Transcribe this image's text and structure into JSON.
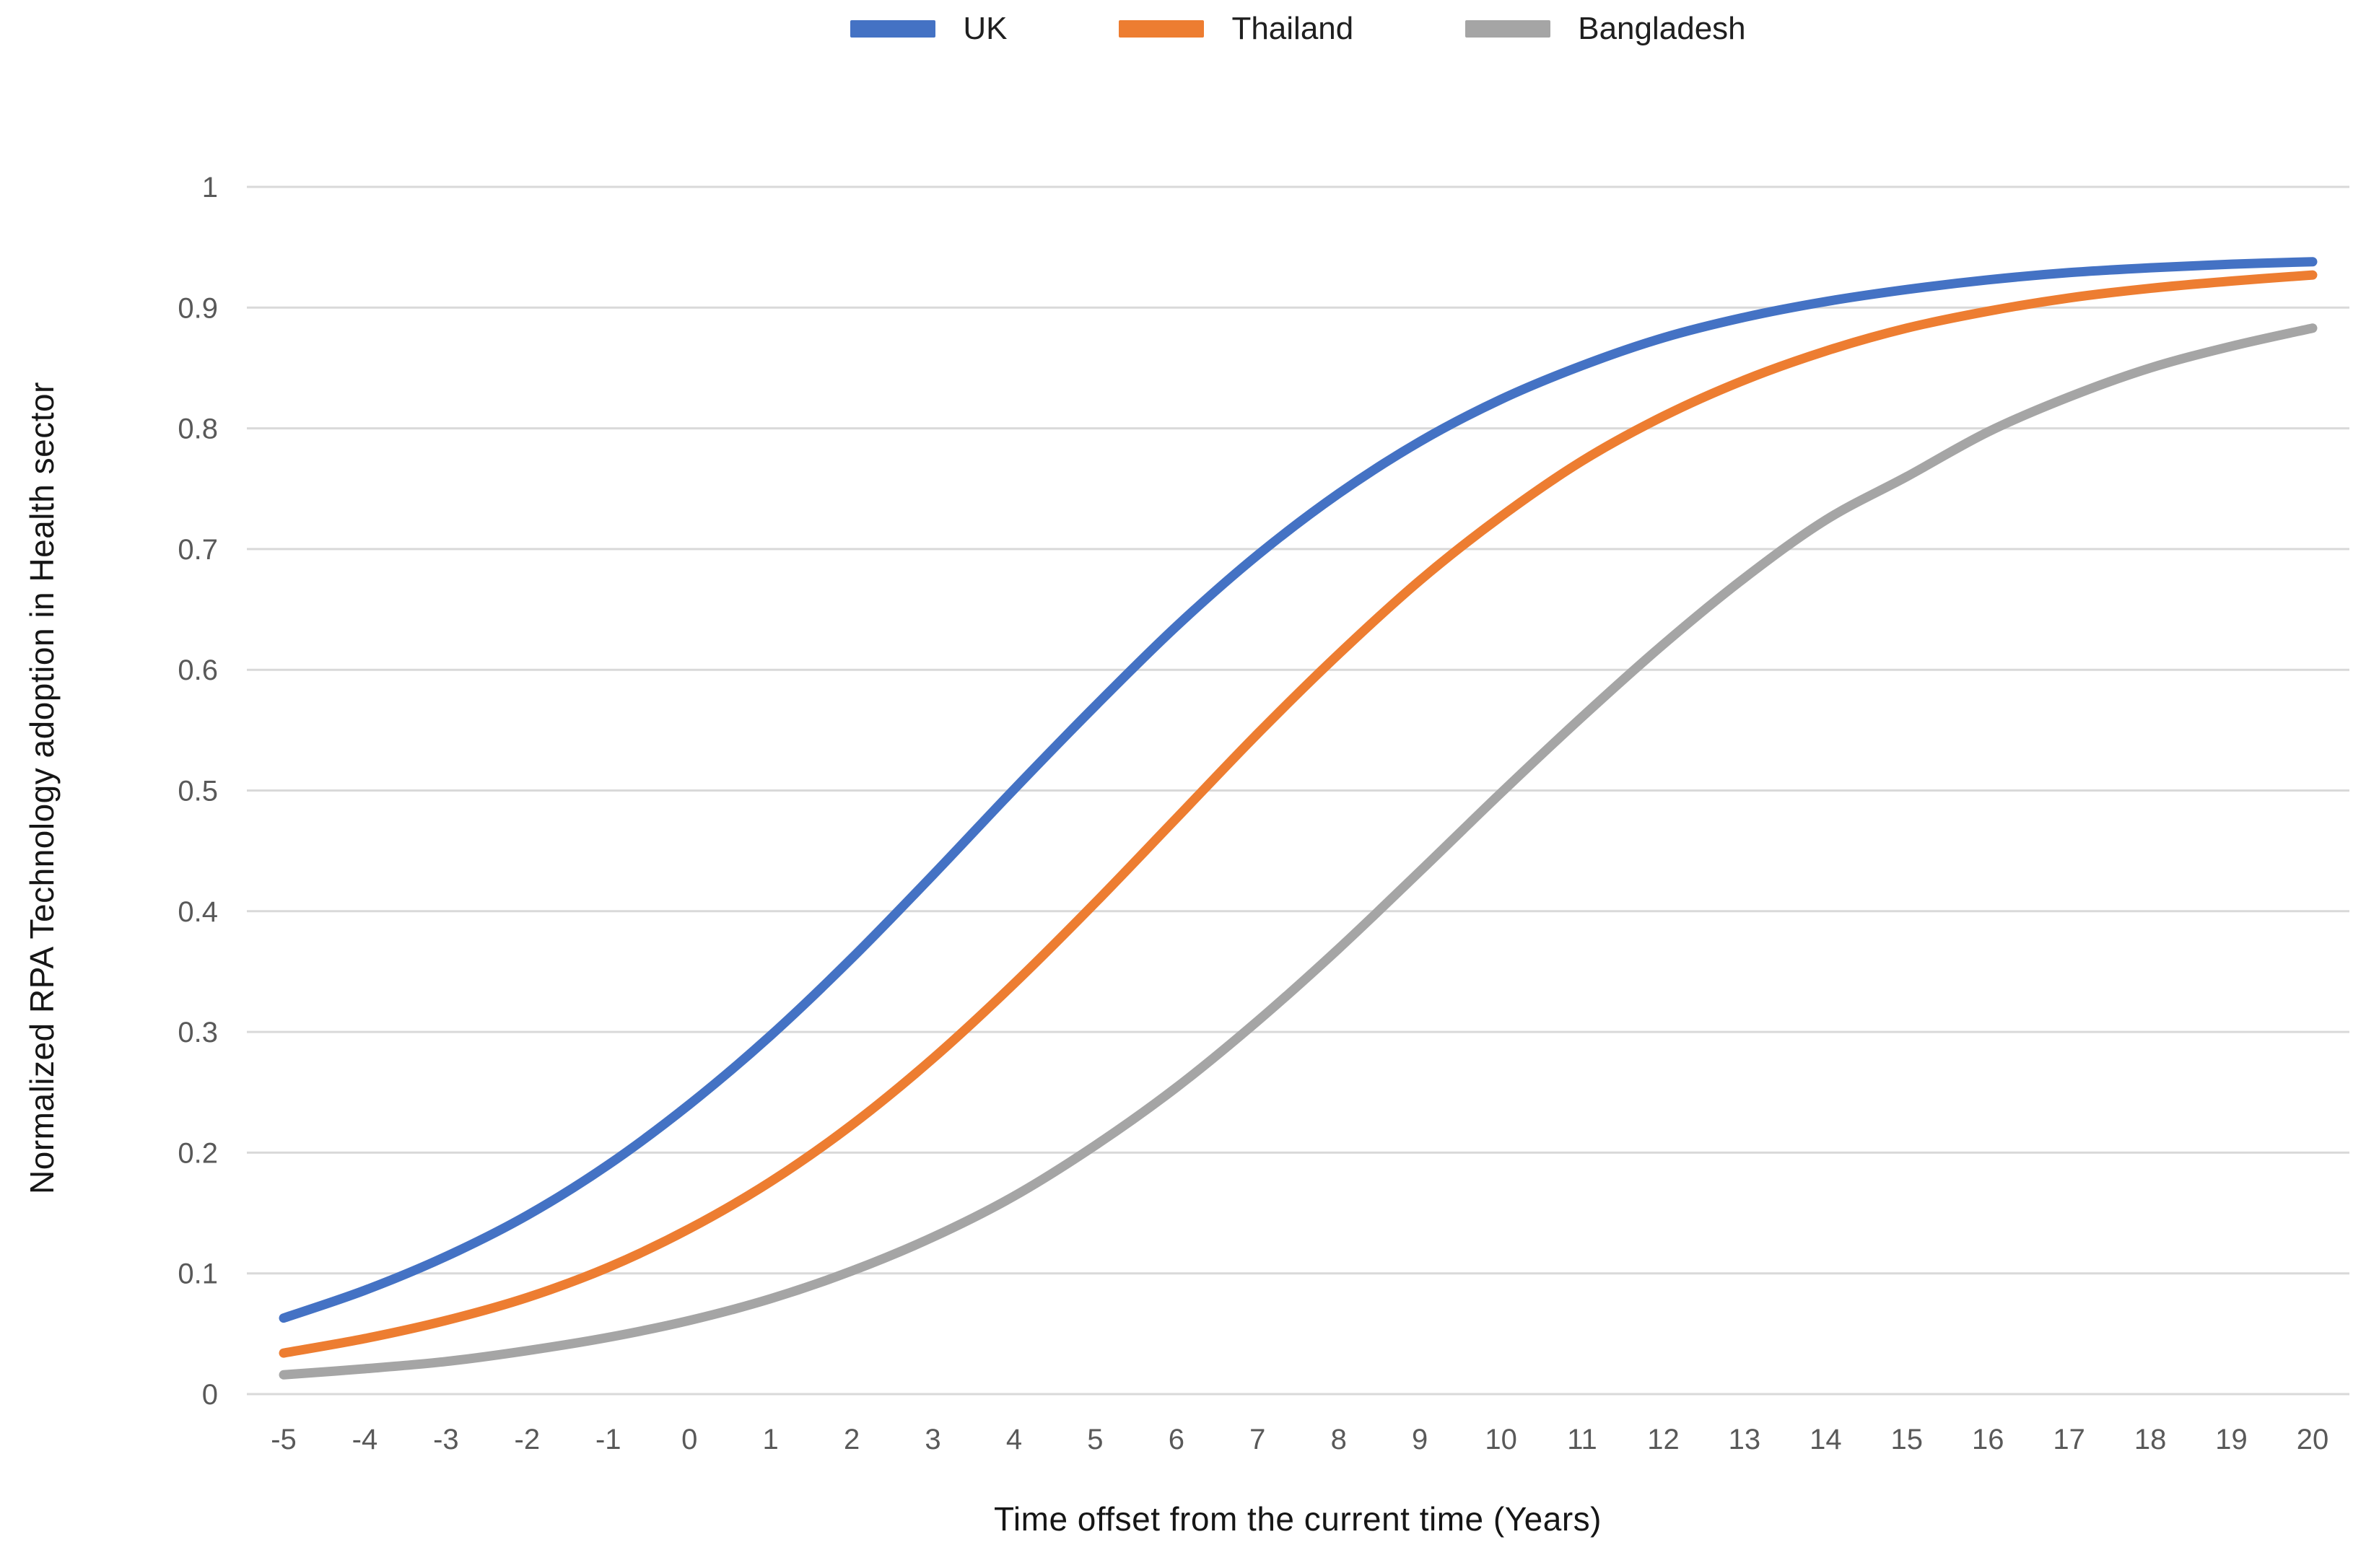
{
  "colors": {
    "uk": "#4472C4",
    "thailand": "#ED7D31",
    "bangladesh": "#A5A5A5",
    "gridline": "#D9D9D9",
    "tick_label": "#595959",
    "axis_title": "#161616"
  },
  "chart_data": {
    "type": "line",
    "title": "",
    "xlabel": "Time offset from the current time (Years)",
    "ylabel": "Normalized RPA Technology adoption in Health sector",
    "x": [
      -5,
      -4,
      -3,
      -2,
      -1,
      0,
      1,
      2,
      3,
      4,
      5,
      6,
      7,
      8,
      9,
      10,
      11,
      12,
      13,
      14,
      15,
      16,
      17,
      18,
      19,
      20
    ],
    "series": [
      {
        "name": "UK",
        "color": "#4472C4",
        "values": [
          0.063,
          0.086,
          0.114,
          0.148,
          0.19,
          0.24,
          0.297,
          0.361,
          0.43,
          0.501,
          0.57,
          0.636,
          0.695,
          0.746,
          0.789,
          0.824,
          0.852,
          0.875,
          0.892,
          0.905,
          0.915,
          0.923,
          0.929,
          0.933,
          0.936,
          0.938
        ]
      },
      {
        "name": "Thailand",
        "color": "#ED7D31",
        "values": [
          0.034,
          0.046,
          0.061,
          0.08,
          0.105,
          0.137,
          0.176,
          0.223,
          0.278,
          0.34,
          0.407,
          0.477,
          0.547,
          0.613,
          0.674,
          0.727,
          0.773,
          0.81,
          0.84,
          0.864,
          0.883,
          0.897,
          0.908,
          0.916,
          0.922,
          0.927
        ]
      },
      {
        "name": "Bangladesh",
        "color": "#A5A5A5",
        "values": [
          0.016,
          0.021,
          0.027,
          0.036,
          0.047,
          0.061,
          0.079,
          0.102,
          0.13,
          0.164,
          0.206,
          0.254,
          0.309,
          0.369,
          0.433,
          0.498,
          0.561,
          0.621,
          0.676,
          0.724,
          0.76,
          0.797,
          0.826,
          0.85,
          0.868,
          0.883
        ]
      }
    ],
    "ylim": [
      0,
      1
    ],
    "ytick_step": 0.1,
    "ytick_labels": [
      "0",
      "0.1",
      "0.2",
      "0.3",
      "0.4",
      "0.5",
      "0.6",
      "0.7",
      "0.8",
      "0.9",
      "1"
    ],
    "xtick_labels": [
      "-5",
      "-4",
      "-3",
      "-2",
      "-1",
      "0",
      "1",
      "2",
      "3",
      "4",
      "5",
      "6",
      "7",
      "8",
      "9",
      "10",
      "11",
      "12",
      "13",
      "14",
      "15",
      "16",
      "17",
      "18",
      "19",
      "20"
    ],
    "grid": true,
    "legend_position": "top",
    "line_smoothing": true
  }
}
